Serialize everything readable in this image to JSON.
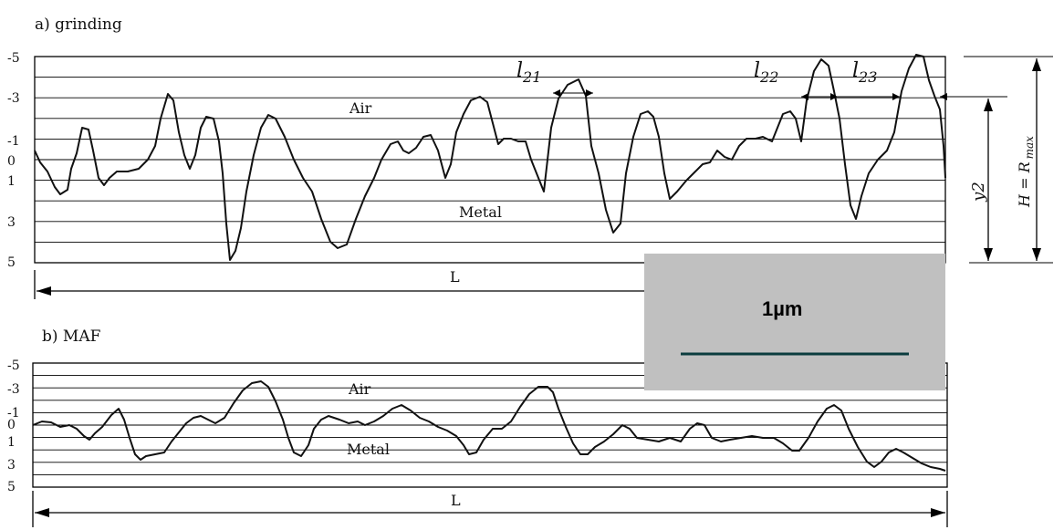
{
  "figure": {
    "panel_a": {
      "title": "a) grinding",
      "y_ticks": [
        "-5",
        "-3",
        "-1",
        "0",
        "1",
        "3",
        "5"
      ],
      "air_label": "Air",
      "metal_label": "Metal",
      "length_label": "L",
      "segment_labels": [
        {
          "main": "l",
          "sub": "21"
        },
        {
          "main": "l",
          "sub": "22"
        },
        {
          "main": "l",
          "sub": "23"
        }
      ],
      "y2_label": "y2",
      "h_label": "H = R",
      "h_sub": "max"
    },
    "panel_b": {
      "title": "b) MAF",
      "y_ticks": [
        "-5",
        "-3",
        "-1",
        "0",
        "1",
        "3",
        "5"
      ],
      "air_label": "Air",
      "metal_label": "Metal",
      "length_label": "L"
    },
    "scale_bar": {
      "label": "1µm",
      "background": "#c0c0c0",
      "bar_color": "#0b3d3f"
    },
    "colors": {
      "profile": "#111111",
      "grid": "#000000"
    }
  }
}
